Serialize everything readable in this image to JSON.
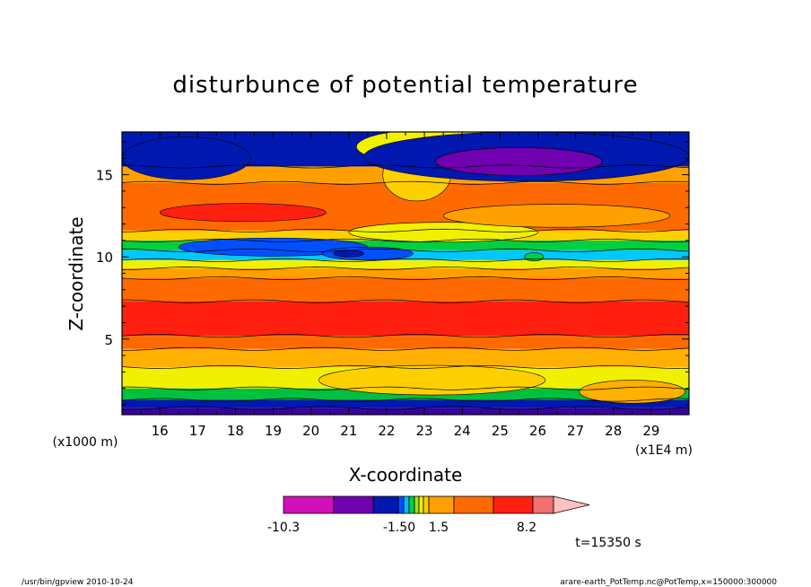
{
  "chart_data": {
    "type": "heatmap",
    "title": "disturbunce of potential temperature",
    "xlabel": "X-coordinate",
    "ylabel": "Z-coordinate",
    "x_scale_label": "(x1E4 m)",
    "y_scale_label": "(x1000 m)",
    "xlim": [
      15,
      30
    ],
    "ylim": [
      0.4,
      17.6
    ],
    "x_ticks": [
      "16",
      "17",
      "18",
      "19",
      "20",
      "21",
      "22",
      "23",
      "24",
      "25",
      "26",
      "27",
      "28",
      "29"
    ],
    "y_ticks": [
      "5",
      "10",
      "15"
    ],
    "colorbar": {
      "labels": [
        "-10.3",
        "-1.50",
        "1.5",
        "8.2"
      ],
      "bins": [
        {
          "color": "#d010b8",
          "value": -10.3
        },
        {
          "color": "#7000b0",
          "value": -7
        },
        {
          "color": "#0018b0",
          "value": -4
        },
        {
          "color": "#0050ff",
          "value": -2.5
        },
        {
          "color": "#00b8ff",
          "value": -2
        },
        {
          "color": "#00d040",
          "value": -1.5
        },
        {
          "color": "#a0e020",
          "value": -1
        },
        {
          "color": "#f0f000",
          "value": -0.5
        },
        {
          "color": "#ffd000",
          "value": 0.5
        },
        {
          "color": "#ffa000",
          "value": 1
        },
        {
          "color": "#ff6a00",
          "value": 1.5
        },
        {
          "color": "#ff2010",
          "value": 4
        },
        {
          "color": "#f07070",
          "value": 8.2
        },
        {
          "color": "#ffc0c0",
          "value": 10
        }
      ]
    },
    "bands": [
      {
        "z": [
          0.4,
          0.8
        ],
        "color": "#3a00a0"
      },
      {
        "z": [
          0.8,
          1.3
        ],
        "color": "#0018b0"
      },
      {
        "z": [
          1.3,
          2.0
        ],
        "color": "#00c040"
      },
      {
        "z": [
          2.0,
          3.3
        ],
        "color": "#f0f000"
      },
      {
        "z": [
          3.3,
          4.4
        ],
        "color": "#ffb000"
      },
      {
        "z": [
          4.4,
          5.2
        ],
        "color": "#ff6a00"
      },
      {
        "z": [
          5.2,
          7.3
        ],
        "color": "#ff2010"
      },
      {
        "z": [
          7.3,
          8.7
        ],
        "color": "#ff6a00"
      },
      {
        "z": [
          8.7,
          9.3
        ],
        "color": "#ffa000"
      },
      {
        "z": [
          9.3,
          9.8
        ],
        "color": "#f0f000"
      },
      {
        "z": [
          9.8,
          10.4
        ],
        "color": "#00c8ff"
      },
      {
        "z": [
          10.4,
          11.0
        ],
        "color": "#00d040"
      },
      {
        "z": [
          11.0,
          11.6
        ],
        "color": "#ffd000"
      },
      {
        "z": [
          11.6,
          14.5
        ],
        "color": "#ff6a00"
      },
      {
        "z": [
          14.5,
          15.5
        ],
        "color": "#ffa000"
      },
      {
        "z": [
          15.5,
          17.6
        ],
        "color": "#0018b0"
      }
    ],
    "features": [
      {
        "kind": "ellipse",
        "cx": 18.2,
        "cz": 12.7,
        "rx": 2.2,
        "rz": 0.55,
        "color": "#ff2010"
      },
      {
        "kind": "ellipse",
        "cx": 19.0,
        "cz": 10.6,
        "rx": 2.5,
        "rz": 0.55,
        "color": "#0050ff"
      },
      {
        "kind": "ellipse",
        "cx": 21.5,
        "cz": 10.2,
        "rx": 1.2,
        "rz": 0.4,
        "color": "#0050ff"
      },
      {
        "kind": "ellipse",
        "cx": 21.0,
        "cz": 10.2,
        "rx": 0.4,
        "rz": 0.2,
        "color": "#0018b0"
      },
      {
        "kind": "ellipse",
        "cx": 23.4,
        "cz": 16.7,
        "rx": 2.2,
        "rz": 1.1,
        "color": "#f0f000"
      },
      {
        "kind": "ellipse",
        "cx": 22.8,
        "cz": 15.0,
        "rx": 0.9,
        "rz": 1.6,
        "color": "#ffd000"
      },
      {
        "kind": "ellipse",
        "cx": 25.7,
        "cz": 16.1,
        "rx": 4.3,
        "rz": 1.5,
        "color": "#0018b0"
      },
      {
        "kind": "ellipse",
        "cx": 25.5,
        "cz": 15.8,
        "rx": 2.2,
        "rz": 0.85,
        "color": "#7000b0"
      },
      {
        "kind": "ellipse",
        "cx": 23.5,
        "cz": 11.5,
        "rx": 2.5,
        "rz": 0.6,
        "color": "#f0f000"
      },
      {
        "kind": "ellipse",
        "cx": 26.5,
        "cz": 12.5,
        "rx": 3.0,
        "rz": 0.7,
        "color": "#ffa000"
      },
      {
        "kind": "ellipse",
        "cx": 25.9,
        "cz": 10.0,
        "rx": 0.25,
        "rz": 0.25,
        "color": "#00d040"
      },
      {
        "kind": "ellipse",
        "cx": 23.2,
        "cz": 2.5,
        "rx": 3.0,
        "rz": 0.9,
        "color": "#ffd000"
      },
      {
        "kind": "ellipse",
        "cx": 28.5,
        "cz": 1.8,
        "rx": 1.4,
        "rz": 0.7,
        "color": "#ffb000"
      },
      {
        "kind": "ellipse",
        "cx": 16.7,
        "cz": 16.0,
        "rx": 1.7,
        "rz": 1.3,
        "color": "#0018b0"
      }
    ]
  },
  "footer": {
    "time_label": "t=15350 s",
    "program": "/usr/bin/gpview   2010-10-24",
    "source": "arare-earth_PotTemp.nc@PotTemp,x=150000:300000"
  }
}
